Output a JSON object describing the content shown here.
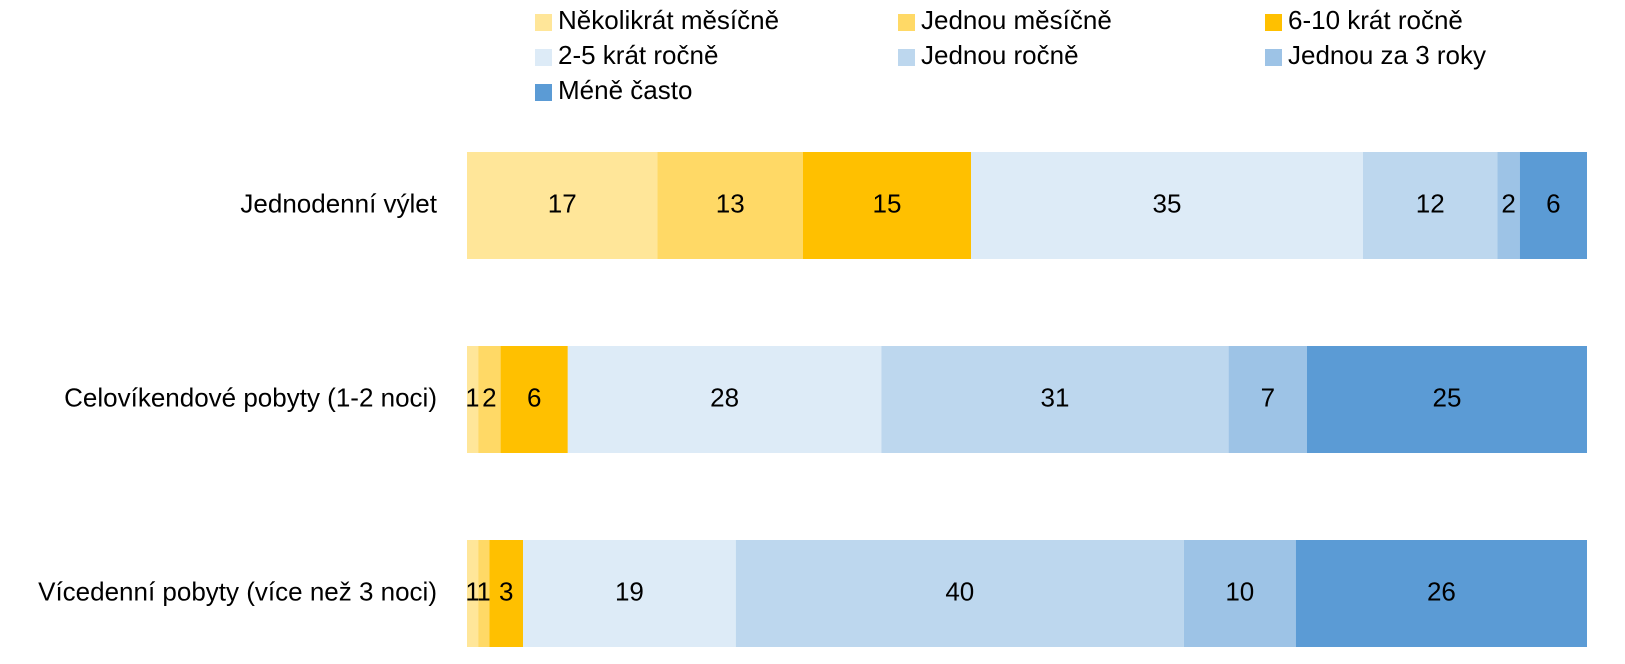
{
  "chart_data": {
    "type": "stacked-bar-horizontal",
    "categories": [
      "Jednodenní výlet",
      "Celovíkendové pobyty (1-2 noci)",
      "Vícedenní pobyty (více než 3 noci)"
    ],
    "series": [
      {
        "name": "Několikrát měsíčně",
        "color": "#FFE699",
        "values": [
          17,
          1,
          1
        ]
      },
      {
        "name": "Jednou měsíčně",
        "color": "#FFD966",
        "values": [
          13,
          2,
          1
        ]
      },
      {
        "name": "6-10 krát ročně",
        "color": "#FFC000",
        "values": [
          15,
          6,
          3
        ]
      },
      {
        "name": "2-5 krát ročně",
        "color": "#DDEBF7",
        "values": [
          35,
          28,
          19
        ]
      },
      {
        "name": "Jednou ročně",
        "color": "#BDD7EE",
        "values": [
          12,
          31,
          40
        ]
      },
      {
        "name": "Jednou za 3 roky",
        "color": "#9DC3E6",
        "values": [
          2,
          7,
          10
        ]
      },
      {
        "name": "Méně často",
        "color": "#5B9BD5",
        "values": [
          6,
          25,
          26
        ]
      }
    ],
    "legend": "top"
  }
}
